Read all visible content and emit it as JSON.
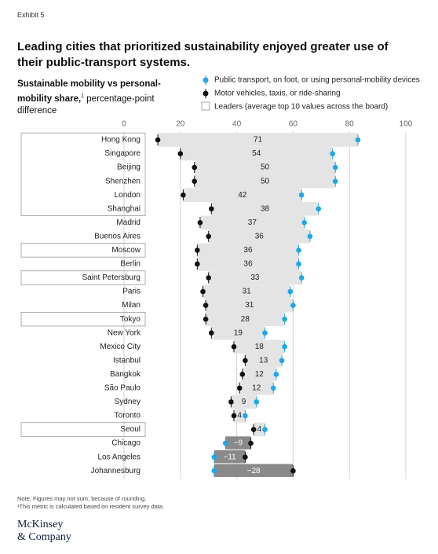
{
  "exhibit": "Exhibit 5",
  "chart_data": {
    "type": "dumbbell",
    "title": "Leading cities that prioritized sustainability enjoyed greater use of their public-transport systems.",
    "subtitle": {
      "bold": "Sustainable mobility vs personal-mobility share,",
      "mark": "1",
      "text": " percentage-point difference"
    },
    "categories": [
      "Hong Kong",
      "Singapore",
      "Beijing",
      "Shenzhen",
      "London",
      "Shanghai",
      "Madrid",
      "Buenos Aires",
      "Moscow",
      "Berlin",
      "Saint Petersburg",
      "Paris",
      "Milan",
      "Tokyo",
      "New York",
      "Mexico City",
      "Istanbul",
      "Bangkok",
      "São Paulo",
      "Sydney",
      "Toronto",
      "Seoul",
      "Chicago",
      "Los Angeles",
      "Johannesburg"
    ],
    "series": [
      {
        "name": "Public transport, on foot, or using personal-mobility devices",
        "color": "#1ea8e6",
        "values": [
          83,
          74,
          75,
          75,
          63,
          69,
          64,
          66,
          62,
          62,
          63,
          59,
          60,
          57,
          50,
          57,
          56,
          54,
          53,
          47,
          43,
          50,
          36,
          32,
          32
        ]
      },
      {
        "name": "Motor vehicles, taxis, or ride-sharing",
        "color": "#111111",
        "values": [
          12,
          20,
          25,
          25,
          21,
          31,
          27,
          30,
          26,
          26,
          30,
          28,
          29,
          29,
          31,
          39,
          43,
          42,
          41,
          38,
          39,
          46,
          45,
          43,
          60
        ]
      }
    ],
    "difference": {
      "values": [
        71,
        54,
        50,
        50,
        42,
        38,
        37,
        36,
        36,
        36,
        33,
        31,
        31,
        28,
        19,
        18,
        13,
        12,
        12,
        9,
        4,
        4,
        -9,
        -11,
        -28
      ],
      "value_labels": [
        "71",
        "54",
        "50",
        "50",
        "42",
        "38",
        "37",
        "36",
        "36",
        "36",
        "33",
        "31",
        "31",
        "28",
        "19",
        "18",
        "13",
        "12",
        "12",
        "9",
        "4",
        "4",
        "−9",
        "−11",
        "−28"
      ],
      "color": "#e4e4e4",
      "negative_color": "#8a8a8a"
    },
    "leaders": [
      true,
      true,
      true,
      true,
      true,
      true,
      false,
      false,
      true,
      false,
      true,
      false,
      false,
      true,
      false,
      false,
      false,
      false,
      false,
      false,
      false,
      true,
      false,
      false,
      false
    ],
    "leaders_legend": "Leaders (average top 10 values across the board)",
    "xlim": [
      0,
      100
    ],
    "xticks": [
      0,
      20,
      40,
      60,
      80,
      100
    ],
    "grid": true
  },
  "notes": [
    "Note: Figures may not sum, because of rounding.",
    "¹This metric is calculated based on resident survey data."
  ],
  "logo": [
    "McKinsey",
    "& Company"
  ]
}
